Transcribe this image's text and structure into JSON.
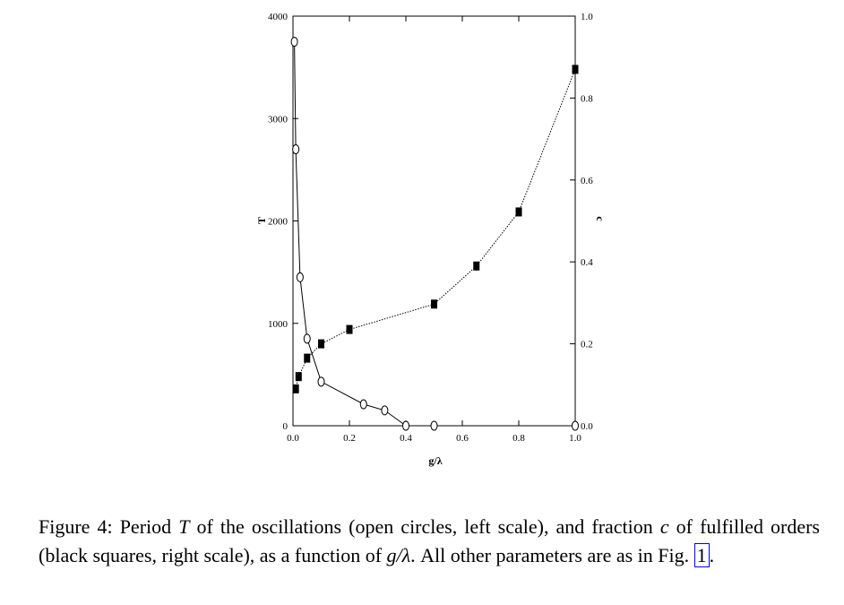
{
  "chart_data": {
    "type": "line",
    "title": "",
    "xlabel": "g/λ",
    "ylabel_left": "T",
    "ylabel_right": "c",
    "xlim": [
      0.0,
      1.0
    ],
    "ylim_left": [
      0,
      4000
    ],
    "ylim_right": [
      0.0,
      1.0
    ],
    "x_ticks": [
      "0.0",
      "0.2",
      "0.4",
      "0.6",
      "0.8",
      "1.0"
    ],
    "y_left_ticks": [
      "0",
      "1000",
      "2000",
      "3000",
      "4000"
    ],
    "y_right_ticks": [
      "0.0",
      "0.2",
      "0.4",
      "0.6",
      "0.8",
      "1.0"
    ],
    "grid": false,
    "series": [
      {
        "axis": "left",
        "marker": "open-circle",
        "line": "solid",
        "x": [
          0.005,
          0.01,
          0.025,
          0.05,
          0.1,
          0.25,
          0.325,
          0.4,
          0.5,
          1.0
        ],
        "y": [
          3750,
          2700,
          1450,
          850,
          430,
          210,
          150,
          0,
          0,
          0
        ]
      },
      {
        "axis": "right",
        "marker": "filled-square",
        "line": "dotted",
        "x": [
          0.01,
          0.02,
          0.05,
          0.1,
          0.2,
          0.5,
          0.65,
          0.8,
          1.0
        ],
        "y": [
          0.09,
          0.12,
          0.165,
          0.2,
          0.235,
          0.297,
          0.39,
          0.522,
          0.87
        ]
      }
    ]
  },
  "caption": {
    "prefix": "Figure 4:  Period ",
    "T": "T",
    "part1": " of the oscillations (open circles, left scale), and fraction ",
    "c": "c",
    "part2": " of fulfilled orders (black squares, right scale), as a function of ",
    "g_over_lambda": "g/λ",
    "part3": ".  All other parameters are as in Fig. ",
    "ref": "1",
    "end": "."
  }
}
